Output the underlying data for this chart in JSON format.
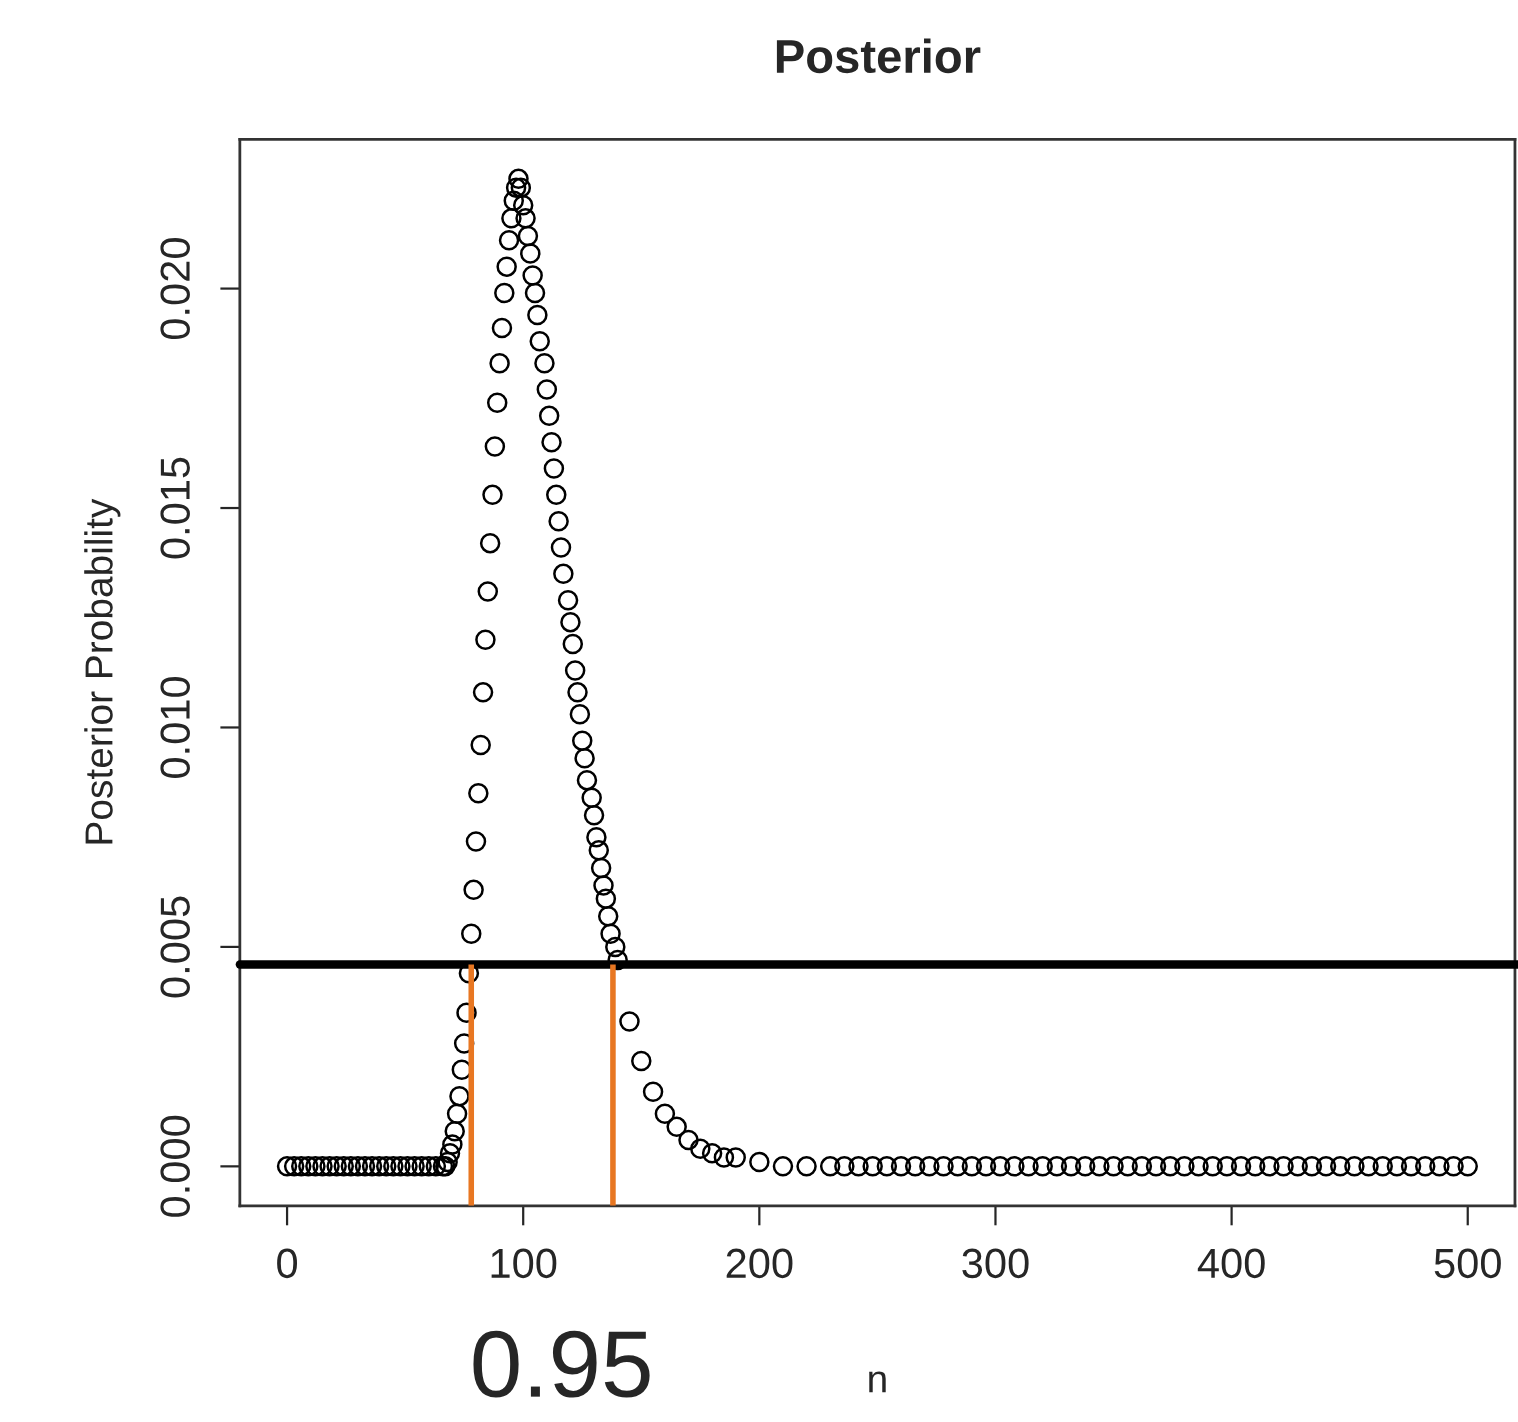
{
  "chart_data": {
    "type": "scatter",
    "title": "Posterior",
    "xlabel": "n",
    "ylabel": "Posterior Probability",
    "marker": "circle",
    "series": [
      {
        "color": "#000000",
        "x": [
          0,
          3,
          6,
          9,
          12,
          15,
          18,
          21,
          24,
          27,
          30,
          33,
          36,
          39,
          42,
          45,
          48,
          51,
          54,
          57,
          60,
          63,
          66,
          67,
          68,
          69,
          70,
          71,
          72,
          73,
          74,
          75,
          76,
          77,
          78,
          79,
          80,
          81,
          82,
          83,
          84,
          85,
          86,
          87,
          88,
          89,
          90,
          91,
          92,
          93,
          94,
          95,
          96,
          97,
          98,
          99,
          100,
          101,
          102,
          103,
          104,
          105,
          106,
          107,
          109,
          110,
          111,
          112,
          113,
          114,
          115,
          116,
          117,
          119,
          120,
          121,
          122,
          123,
          124,
          125,
          126,
          127,
          129,
          130,
          131,
          132,
          133,
          134,
          135,
          136,
          137,
          139,
          140,
          145,
          150,
          155,
          160,
          165,
          170,
          175,
          180,
          185,
          190,
          200,
          210,
          220,
          230,
          236,
          242,
          248,
          254,
          260,
          266,
          272,
          278,
          284,
          290,
          296,
          302,
          308,
          314,
          320,
          326,
          332,
          338,
          344,
          350,
          356,
          362,
          368,
          374,
          380,
          386,
          392,
          398,
          404,
          410,
          416,
          422,
          428,
          434,
          440,
          446,
          452,
          458,
          464,
          470,
          476,
          482,
          488,
          494,
          500
        ],
        "values": [
          0,
          0,
          0,
          0,
          0,
          0,
          0,
          0,
          0,
          0,
          0,
          0,
          0,
          0,
          0,
          0,
          0,
          0,
          0,
          0,
          0,
          0,
          0,
          0,
          0.0001,
          0.0003,
          0.0005,
          0.0008,
          0.0012,
          0.0016,
          0.0022,
          0.0028,
          0.0035,
          0.0044,
          0.0053,
          0.0063,
          0.0074,
          0.0085,
          0.0096,
          0.0108,
          0.012,
          0.0131,
          0.0142,
          0.0153,
          0.0164,
          0.0174,
          0.0183,
          0.0191,
          0.0199,
          0.0205,
          0.0211,
          0.0216,
          0.022,
          0.0223,
          0.0225,
          0.0223,
          0.0219,
          0.0216,
          0.0212,
          0.0208,
          0.0203,
          0.0199,
          0.0194,
          0.0188,
          0.0183,
          0.0177,
          0.0171,
          0.0165,
          0.0159,
          0.0153,
          0.0147,
          0.0141,
          0.0135,
          0.0129,
          0.0124,
          0.0119,
          0.0113,
          0.0108,
          0.0103,
          0.0097,
          0.0093,
          0.0088,
          0.0084,
          0.008,
          0.0075,
          0.0072,
          0.0068,
          0.0064,
          0.0061,
          0.0057,
          0.0053,
          0.005,
          0.0047,
          0.0033,
          0.0024,
          0.0017,
          0.0012,
          0.0009,
          0.0006,
          0.0004,
          0.0003,
          0.0002,
          0.0002,
          0.0001,
          0,
          0,
          0,
          0,
          0,
          0,
          0,
          0,
          0,
          0,
          0,
          0,
          0,
          0,
          0,
          0,
          0,
          0,
          0,
          0,
          0,
          0,
          0,
          0,
          0,
          0,
          0,
          0,
          0,
          0,
          0,
          0,
          0,
          0,
          0,
          0,
          0,
          0,
          0,
          0,
          0,
          0,
          0,
          0,
          0,
          0,
          0,
          0
        ]
      }
    ],
    "xlim": [
      -20,
      520
    ],
    "xticks": [
      0,
      100,
      200,
      300,
      400,
      500
    ],
    "ylim": [
      -0.0009,
      0.0234
    ],
    "yticks": [
      {
        "value": 0,
        "label": "0.000"
      },
      {
        "value": 0.005,
        "label": "0.005"
      },
      {
        "value": 0.01,
        "label": "0.010"
      },
      {
        "value": 0.015,
        "label": "0.015"
      },
      {
        "value": 0.02,
        "label": "0.020"
      }
    ],
    "ref_lines": [
      {
        "axis": "y",
        "value": 0.0046,
        "color": "#000000"
      },
      {
        "axis": "x",
        "value": 78,
        "color": "#e87722"
      },
      {
        "axis": "x",
        "value": 138,
        "color": "#e87722"
      }
    ],
    "annotations": [
      "0.95"
    ]
  }
}
